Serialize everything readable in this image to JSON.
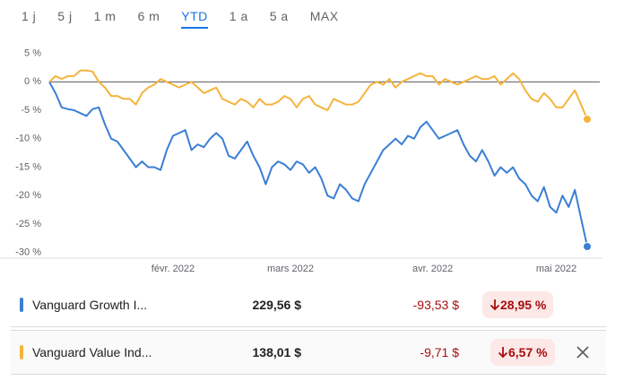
{
  "tabs": [
    "1 j",
    "5 j",
    "1 m",
    "6 m",
    "YTD",
    "1 a",
    "5 a",
    "MAX"
  ],
  "selected_tab": 4,
  "chart_data": {
    "type": "line",
    "categories": [
      null,
      null,
      null,
      null,
      null,
      null,
      null,
      null,
      null,
      null,
      null,
      null,
      null,
      null,
      null,
      null,
      null,
      null,
      null,
      null,
      "févr. 2022",
      null,
      null,
      null,
      null,
      null,
      null,
      null,
      null,
      null,
      null,
      null,
      null,
      null,
      null,
      null,
      null,
      null,
      null,
      "mars 2022",
      null,
      null,
      null,
      null,
      null,
      null,
      null,
      null,
      null,
      null,
      null,
      null,
      null,
      null,
      null,
      null,
      null,
      null,
      null,
      null,
      null,
      null,
      "avr. 2022",
      null,
      null,
      null,
      null,
      null,
      null,
      null,
      null,
      null,
      null,
      null,
      null,
      null,
      null,
      null,
      null,
      null,
      null,
      null,
      "mai 2022",
      null,
      null,
      null,
      null,
      null
    ],
    "series": [
      {
        "name": "Vanguard Growth I...",
        "color": "#3b7fd4",
        "values": [
          0,
          -2,
          -4.5,
          -4.8,
          -5,
          -5.5,
          -6,
          -4.8,
          -4.5,
          -7.5,
          -10,
          -10.5,
          -12,
          -13.5,
          -15,
          -14,
          -15,
          -15,
          -15.5,
          -12,
          -9.5,
          -9,
          -8.5,
          -12,
          -11,
          -11.5,
          -10,
          -9,
          -10,
          -13,
          -13.5,
          -12,
          -10.5,
          -13,
          -15,
          -18,
          -15,
          -14,
          -14.5,
          -15.5,
          -14,
          -14.5,
          -16,
          -15,
          -17,
          -20,
          -20.5,
          -18,
          -19,
          -20.5,
          -21,
          -18,
          -16,
          -14,
          -12,
          -11,
          -10,
          -11,
          -9.5,
          -10,
          -8,
          -7,
          -8.5,
          -10,
          -9.5,
          -9,
          -8.5,
          -11,
          -13,
          -14,
          -12,
          -14,
          -16.5,
          -15,
          -16,
          -15,
          -17,
          -18,
          -20,
          -21,
          -18.5,
          -22,
          -23,
          -20,
          -22,
          -19,
          -24,
          -28.95
        ]
      },
      {
        "name": "Vanguard Value Ind...",
        "color": "#f4b43c",
        "values": [
          0,
          1,
          0.5,
          1,
          1,
          2,
          2,
          1.8,
          0,
          -1,
          -2.5,
          -2.5,
          -3,
          -3,
          -4,
          -2,
          -1,
          -0.5,
          0.5,
          0,
          -0.5,
          -1,
          -0.5,
          0,
          -1,
          -2,
          -1.5,
          -1,
          -3,
          -3.5,
          -4,
          -3,
          -3.5,
          -4.5,
          -3,
          -4,
          -4,
          -3.5,
          -2.5,
          -3,
          -4.5,
          -3,
          -2.5,
          -4,
          -4.5,
          -5,
          -3,
          -3.5,
          -4,
          -4,
          -3.5,
          -2,
          -0.5,
          0,
          -0.5,
          0.5,
          -1,
          0,
          0.5,
          1,
          1.5,
          1,
          1,
          -0.5,
          0.5,
          0,
          -0.5,
          0,
          0.5,
          1,
          0.5,
          0.5,
          1,
          -0.5,
          0.5,
          1.5,
          0.5,
          -1.5,
          -3,
          -3.5,
          -2,
          -3,
          -4.5,
          -4.5,
          -3,
          -1.5,
          -4,
          -6.57
        ]
      }
    ],
    "ylim": [
      -31,
      6.5
    ],
    "yticks": [
      {
        "value": 5,
        "label": "5 %"
      },
      {
        "value": 0,
        "label": "0 %"
      },
      {
        "value": -5,
        "label": "-5 %"
      },
      {
        "value": -10,
        "label": "-10 %"
      },
      {
        "value": -15,
        "label": "-15 %"
      },
      {
        "value": -20,
        "label": "-20 %"
      },
      {
        "value": -25,
        "label": "-25 %"
      },
      {
        "value": -30,
        "label": "-30 %"
      }
    ],
    "grid": false
  },
  "table": {
    "rows": [
      {
        "name": "Vanguard Growth I...",
        "price": "229,56 $",
        "change": "-93,53 $",
        "change_pct": "28,95 %"
      },
      {
        "name": "Vanguard Value Ind...",
        "price": "138,01 $",
        "change": "-9,71 $",
        "change_pct": "6,57 %"
      }
    ]
  }
}
